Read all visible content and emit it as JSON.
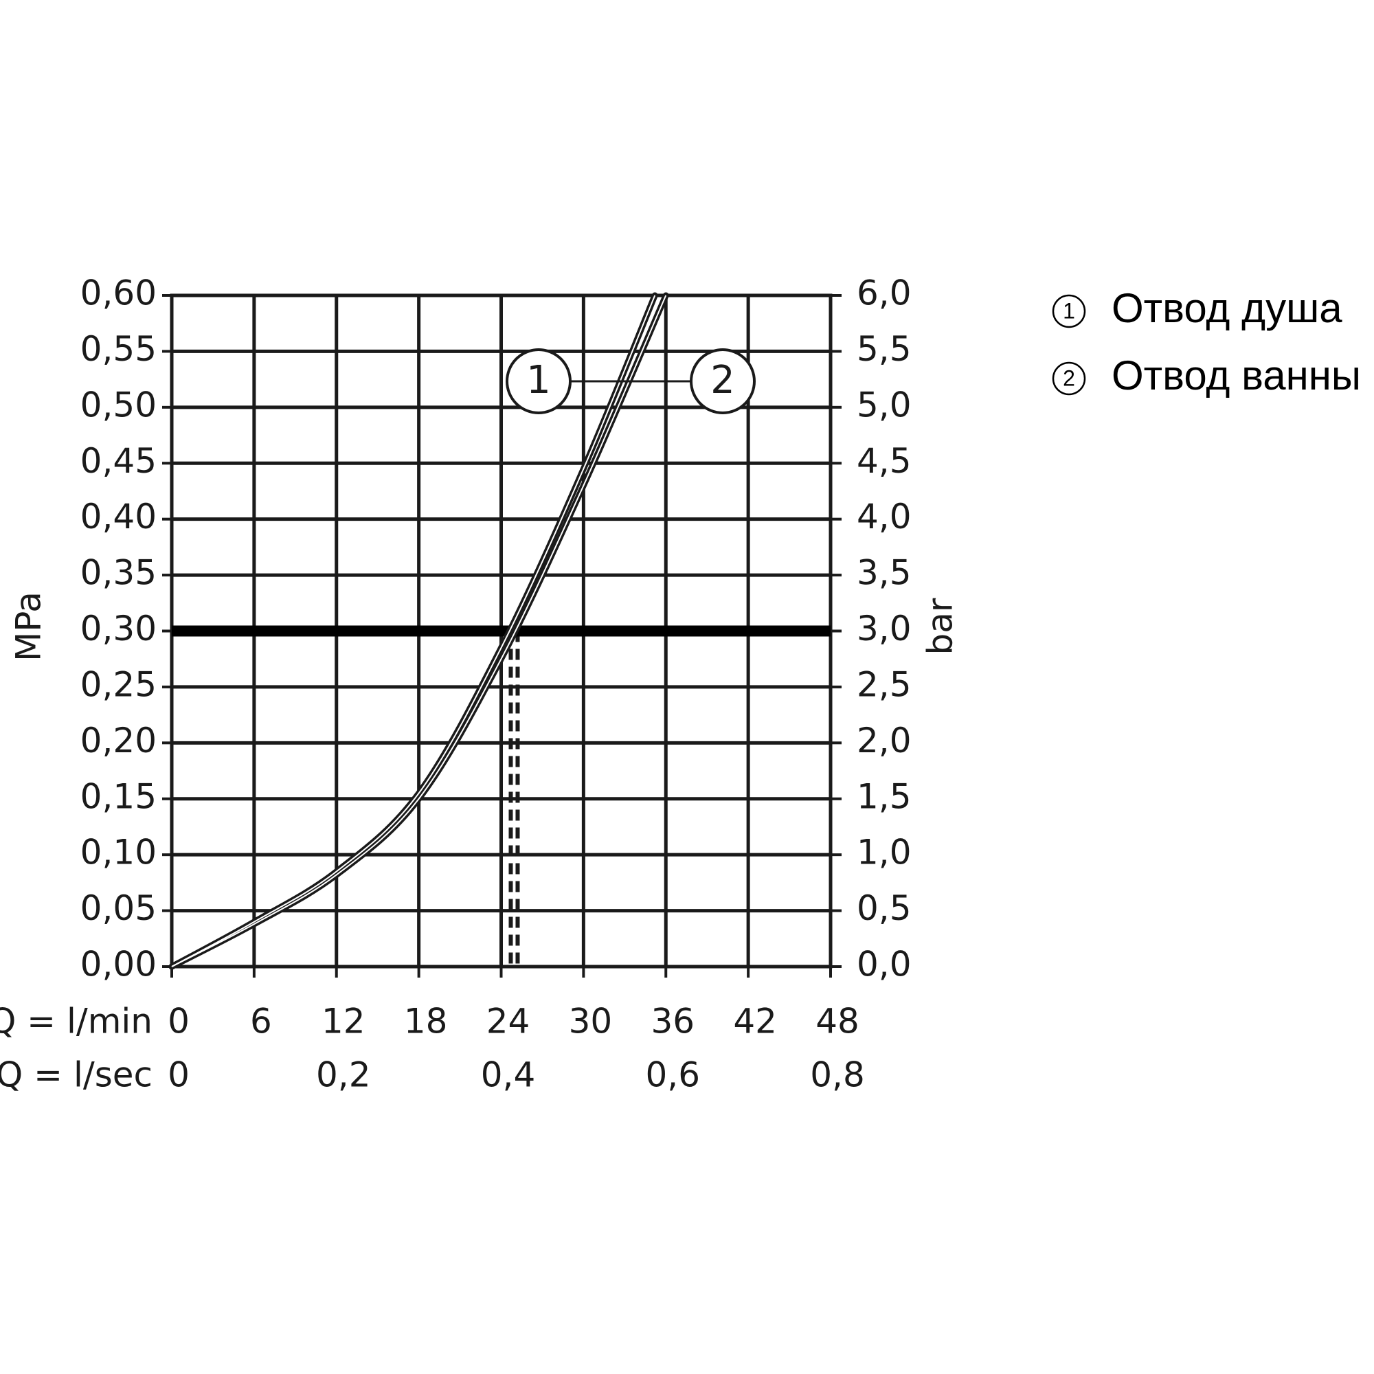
{
  "chart_data": {
    "type": "line",
    "y_label": "MPa",
    "y2_label": "bar",
    "x_label": "Q = l/min",
    "x2_label": "Q = l/sec",
    "xlim": [
      0,
      48
    ],
    "xticks": [
      0,
      6,
      12,
      18,
      24,
      30,
      36,
      42,
      48
    ],
    "x2lim": [
      0,
      0.8
    ],
    "x2ticks": [
      0,
      {
        "value": 0.2,
        "label": "0,2"
      },
      {
        "value": 0.4,
        "label": "0,4"
      },
      {
        "value": 0.6,
        "label": "0,6"
      },
      {
        "value": 0.8,
        "label": "0,8"
      }
    ],
    "ylim": [
      0,
      0.6
    ],
    "yticks": [
      {
        "value": 0,
        "label": "0,00"
      },
      {
        "value": 0.05,
        "label": "0,05"
      },
      {
        "value": 0.1,
        "label": "0,10"
      },
      {
        "value": 0.15,
        "label": "0,15"
      },
      {
        "value": 0.2,
        "label": "0,20"
      },
      {
        "value": 0.25,
        "label": "0,25"
      },
      {
        "value": 0.3,
        "label": "0,30"
      },
      {
        "value": 0.35,
        "label": "0,35"
      },
      {
        "value": 0.4,
        "label": "0,40"
      },
      {
        "value": 0.45,
        "label": "0,45"
      },
      {
        "value": 0.5,
        "label": "0,50"
      },
      {
        "value": 0.55,
        "label": "0,55"
      },
      {
        "value": 0.6,
        "label": "0,60"
      }
    ],
    "y2lim": [
      0,
      6
    ],
    "y2ticks": [
      {
        "value": 0,
        "label": "0,0"
      },
      {
        "value": 0.5,
        "label": "0,5"
      },
      {
        "value": 1,
        "label": "1,0"
      },
      {
        "value": 1.5,
        "label": "1,5"
      },
      {
        "value": 2,
        "label": "2,0"
      },
      {
        "value": 2.5,
        "label": "2,5"
      },
      {
        "value": 3,
        "label": "3,0"
      },
      {
        "value": 3.5,
        "label": "3,5"
      },
      {
        "value": 4,
        "label": "4,0"
      },
      {
        "value": 4.5,
        "label": "4,5"
      },
      {
        "value": 5,
        "label": "5,0"
      },
      {
        "value": 5.5,
        "label": "5,5"
      },
      {
        "value": 6,
        "label": "6,0"
      }
    ],
    "grid": true,
    "highlight_y": 0.3,
    "drop_lines_x": [
      24.7,
      25.2
    ],
    "series": [
      {
        "name": "Отвод душа",
        "label": "1",
        "color": "#1a1a1a",
        "x": [
          0,
          6,
          12,
          18,
          24,
          30,
          35.2
        ],
        "values": [
          0,
          0.04,
          0.085,
          0.155,
          0.285,
          0.445,
          0.6
        ]
      },
      {
        "name": "Отвод ванны",
        "label": "2",
        "color": "#1a1a1a",
        "x": [
          0,
          6,
          12,
          18,
          24,
          30,
          36
        ],
        "values": [
          0,
          0.038,
          0.082,
          0.15,
          0.275,
          0.43,
          0.6
        ]
      }
    ]
  }
}
